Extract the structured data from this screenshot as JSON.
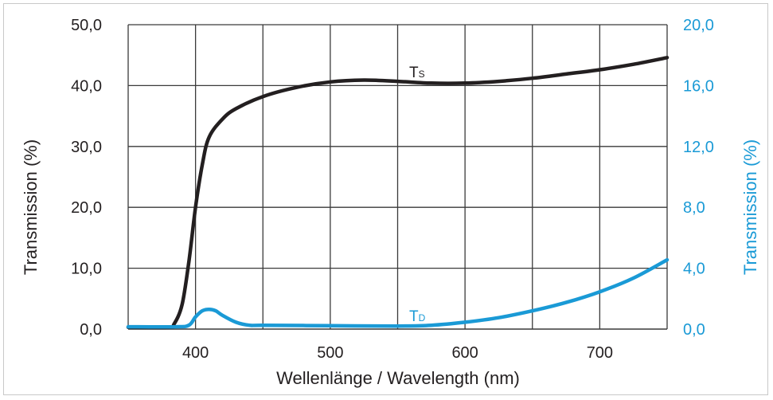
{
  "chart_data": {
    "type": "line",
    "xlabel": "Wellenlänge / Wavelength (nm)",
    "ylabel_left": "Transmission (%)",
    "ylabel_right": "Transmission (%)",
    "xlim": [
      350,
      750
    ],
    "ylim_left": [
      0,
      50
    ],
    "ylim_right": [
      0,
      20
    ],
    "x_ticks": [
      400,
      500,
      600,
      700
    ],
    "y_ticks_left": [
      "0,0",
      "10,0",
      "20,0",
      "30,0",
      "40,0",
      "50,0"
    ],
    "y_ticks_right": [
      "0,0",
      "4,0",
      "8,0",
      "12,0",
      "16,0",
      "20,0"
    ],
    "grid": true,
    "colors": {
      "ts": "#231f20",
      "td": "#1a9ad6",
      "grid": "#3a3a3a"
    },
    "series": [
      {
        "name": "TS",
        "label_main": "T",
        "label_sub": "S",
        "axis": "left",
        "x": [
          350,
          380,
          384,
          390,
          395,
          400,
          405,
          410,
          420,
          430,
          450,
          475,
          500,
          525,
          550,
          575,
          600,
          625,
          650,
          675,
          700,
          725,
          750
        ],
        "y": [
          0.3,
          0.3,
          0.8,
          4.0,
          11.0,
          20.0,
          27.0,
          31.5,
          34.5,
          36.2,
          38.2,
          39.7,
          40.6,
          40.9,
          40.7,
          40.4,
          40.4,
          40.7,
          41.2,
          41.9,
          42.6,
          43.5,
          44.6
        ]
      },
      {
        "name": "TD",
        "label_main": "T",
        "label_sub": "D",
        "axis": "right",
        "x": [
          350,
          385,
          395,
          400,
          405,
          410,
          415,
          420,
          430,
          440,
          450,
          500,
          550,
          575,
          600,
          625,
          650,
          675,
          700,
          725,
          750
        ],
        "y": [
          0.15,
          0.15,
          0.25,
          0.8,
          1.2,
          1.3,
          1.2,
          0.9,
          0.45,
          0.25,
          0.25,
          0.22,
          0.2,
          0.25,
          0.45,
          0.75,
          1.2,
          1.75,
          2.45,
          3.35,
          4.55
        ]
      }
    ]
  }
}
